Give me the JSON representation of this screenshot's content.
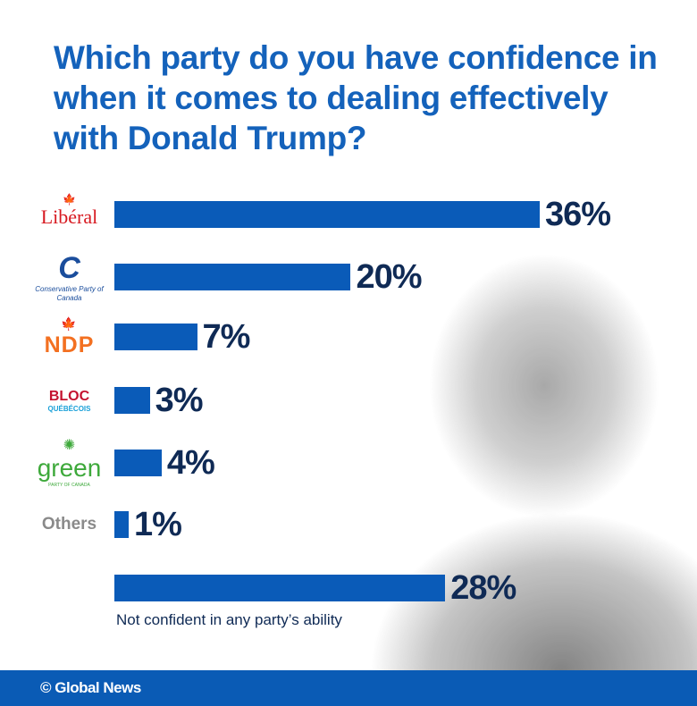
{
  "title": "Which party do you have confidence in when it comes to dealing effectively with Donald Trump?",
  "logos": {
    "liberal": "Libéral",
    "conservative_mark": "C",
    "conservative": "Conservative Party of Canada",
    "ndp": "NDP",
    "bloc": "BLOC",
    "bloc_sub": "QUÉBÉCOIS",
    "green": "green",
    "green_sub": "PARTY OF CANADA",
    "others": "Others"
  },
  "chart_data": {
    "type": "bar",
    "orientation": "horizontal",
    "categories": [
      "Liberal",
      "Conservative Party of Canada",
      "NDP",
      "Bloc Québécois",
      "Green Party of Canada",
      "Others",
      "Not confident in any party's ability"
    ],
    "values": [
      36,
      20,
      7,
      3,
      4,
      1,
      28
    ],
    "labels": [
      "36%",
      "20%",
      "7%",
      "3%",
      "4%",
      "1%",
      "28%"
    ],
    "bar_color": "#0a5bb8"
  },
  "not_confident_label": "Not confident in any party’s ability",
  "footer": "© Global News",
  "colors": {
    "title": "#1462bb",
    "footer": "#0a5bb5",
    "value": "#0f2a55"
  }
}
